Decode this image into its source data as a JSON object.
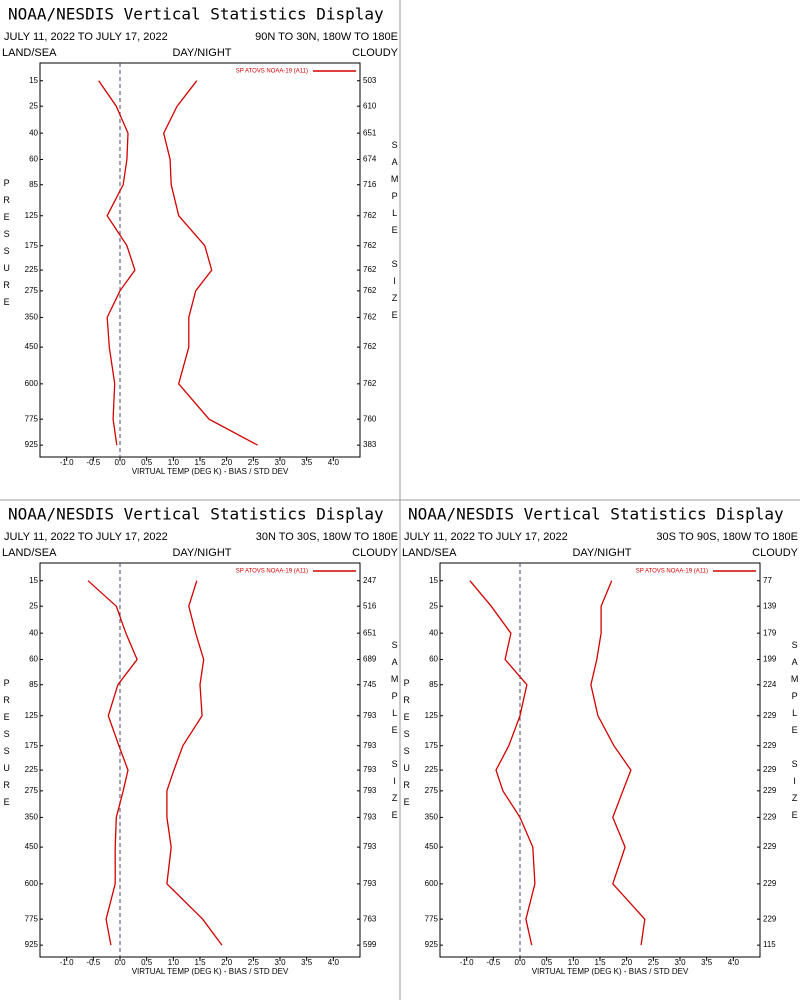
{
  "chart_data": [
    {
      "type": "line",
      "title": "NOAA/NESDIS Vertical Statistics Display",
      "subtitle": "JULY 11, 2022 TO JULY 17, 2022",
      "region": "90N TO 30N, 180W TO 180E",
      "land_sea": "LAND/SEA",
      "day_night": "DAY/NIGHT",
      "cloudy": "CLOUDY",
      "ylabel": "PRESSURE",
      "y2label": "SAMPLE SIZE",
      "xlabel": "VIRTUAL TEMP (DEG K) - BIAS / STD DEV",
      "xlim": [
        -1.5,
        4.5
      ],
      "xticks": [
        {
          "value": -1.0,
          "label": "-1.0"
        },
        {
          "value": -0.5,
          "label": "-0.5"
        },
        {
          "value": 0.0,
          "label": "0.0"
        },
        {
          "value": 0.5,
          "label": "0.5"
        },
        {
          "value": 1.0,
          "label": "1.0"
        },
        {
          "value": 1.5,
          "label": "1.5"
        },
        {
          "value": 2.0,
          "label": "2.0"
        },
        {
          "value": 2.5,
          "label": "2.5"
        },
        {
          "value": 3.0,
          "label": "3.0"
        },
        {
          "value": 3.5,
          "label": "3.5"
        },
        {
          "value": 4.0,
          "label": "4.0"
        }
      ],
      "ylim": [
        1000,
        10
      ],
      "yticks": [
        15,
        25,
        40,
        60,
        85,
        125,
        175,
        225,
        275,
        350,
        450,
        600,
        775,
        925
      ],
      "series": [
        {
          "name": "SP ATOVS NOAA-19 (A11)",
          "color": "#d40000",
          "bias": [
            -0.4,
            -0.07,
            0.15,
            0.13,
            0.06,
            -0.24,
            0.13,
            0.28,
            0.0,
            -0.24,
            -0.2,
            -0.1,
            -0.13,
            -0.06
          ],
          "std_dev": [
            1.44,
            1.07,
            0.82,
            0.94,
            0.96,
            1.1,
            1.59,
            1.72,
            1.42,
            1.29,
            1.29,
            1.1,
            1.67,
            2.58
          ]
        }
      ],
      "sample_size": [
        503,
        610,
        651,
        674,
        716,
        762,
        762,
        762,
        762,
        762,
        762,
        762,
        760,
        383
      ]
    },
    {
      "type": "line",
      "title": "NOAA/NESDIS Vertical Statistics Display",
      "subtitle": "JULY 11, 2022 TO JULY 17, 2022",
      "region": "30N TO 30S, 180W TO 180E",
      "land_sea": "LAND/SEA",
      "day_night": "DAY/NIGHT",
      "cloudy": "CLOUDY",
      "ylabel": "PRESSURE",
      "y2label": "SAMPLE SIZE",
      "xlabel": "VIRTUAL TEMP (DEG K) - BIAS / STD DEV",
      "xlim": [
        -1.5,
        4.5
      ],
      "xticks": [
        {
          "value": -1.0,
          "label": "-1.0"
        },
        {
          "value": -0.5,
          "label": "-0.5"
        },
        {
          "value": 0.0,
          "label": "0.0"
        },
        {
          "value": 0.5,
          "label": "0.5"
        },
        {
          "value": 1.0,
          "label": "1.0"
        },
        {
          "value": 1.5,
          "label": "1.5"
        },
        {
          "value": 2.0,
          "label": "2.0"
        },
        {
          "value": 2.5,
          "label": "2.5"
        },
        {
          "value": 3.0,
          "label": "3.0"
        },
        {
          "value": 3.5,
          "label": "3.5"
        },
        {
          "value": 4.0,
          "label": "4.0"
        }
      ],
      "ylim": [
        1000,
        10
      ],
      "yticks": [
        15,
        25,
        40,
        60,
        85,
        125,
        175,
        225,
        275,
        350,
        450,
        600,
        775,
        925
      ],
      "series": [
        {
          "name": "SP ATOVS NOAA-19 (A11)",
          "color": "#d40000",
          "bias": [
            -0.6,
            -0.07,
            0.11,
            0.32,
            -0.04,
            -0.22,
            -0.02,
            0.15,
            0.06,
            -0.07,
            -0.09,
            -0.09,
            -0.26,
            -0.17
          ],
          "std_dev": [
            1.44,
            1.29,
            1.42,
            1.57,
            1.5,
            1.54,
            1.18,
            1.01,
            0.88,
            0.88,
            0.96,
            0.88,
            1.55,
            1.91
          ]
        }
      ],
      "sample_size": [
        247,
        516,
        651,
        689,
        745,
        793,
        793,
        793,
        793,
        793,
        793,
        793,
        763,
        599
      ]
    },
    {
      "type": "line",
      "title": "NOAA/NESDIS Vertical Statistics Display",
      "subtitle": "JULY 11, 2022 TO JULY 17, 2022",
      "region": "30S TO 90S, 180W TO 180E",
      "land_sea": "LAND/SEA",
      "day_night": "DAY/NIGHT",
      "cloudy": "CLOUDY",
      "ylabel": "PRESSURE",
      "y2label": "SAMPLE SIZE",
      "xlabel": "VIRTUAL TEMP (DEG K) - BIAS / STD DEV",
      "xlim": [
        -1.5,
        4.5
      ],
      "xticks": [
        {
          "value": -1.0,
          "label": "-1.0"
        },
        {
          "value": -0.5,
          "label": "-0.5"
        },
        {
          "value": 0.0,
          "label": "0.0"
        },
        {
          "value": 0.5,
          "label": "0.5"
        },
        {
          "value": 1.0,
          "label": "1.0"
        },
        {
          "value": 1.5,
          "label": "1.5"
        },
        {
          "value": 2.0,
          "label": "2.0"
        },
        {
          "value": 2.5,
          "label": "2.5"
        },
        {
          "value": 3.0,
          "label": "3.0"
        },
        {
          "value": 3.5,
          "label": "3.5"
        },
        {
          "value": 4.0,
          "label": "4.0"
        }
      ],
      "ylim": [
        1000,
        10
      ],
      "yticks": [
        15,
        25,
        40,
        60,
        85,
        125,
        175,
        225,
        275,
        350,
        450,
        600,
        775,
        925
      ],
      "series": [
        {
          "name": "SP ATOVS NOAA-19 (A11)",
          "color": "#d40000",
          "bias": [
            -0.94,
            -0.54,
            -0.17,
            -0.28,
            0.13,
            0.0,
            -0.21,
            -0.45,
            -0.32,
            0.0,
            0.24,
            0.28,
            0.11,
            0.22
          ],
          "std_dev": [
            1.72,
            1.52,
            1.52,
            1.44,
            1.33,
            1.46,
            1.76,
            2.08,
            1.93,
            1.74,
            1.97,
            1.74,
            2.34,
            2.27
          ]
        }
      ],
      "sample_size": [
        77,
        139,
        179,
        199,
        224,
        229,
        229,
        229,
        229,
        229,
        229,
        229,
        229,
        115
      ]
    }
  ]
}
